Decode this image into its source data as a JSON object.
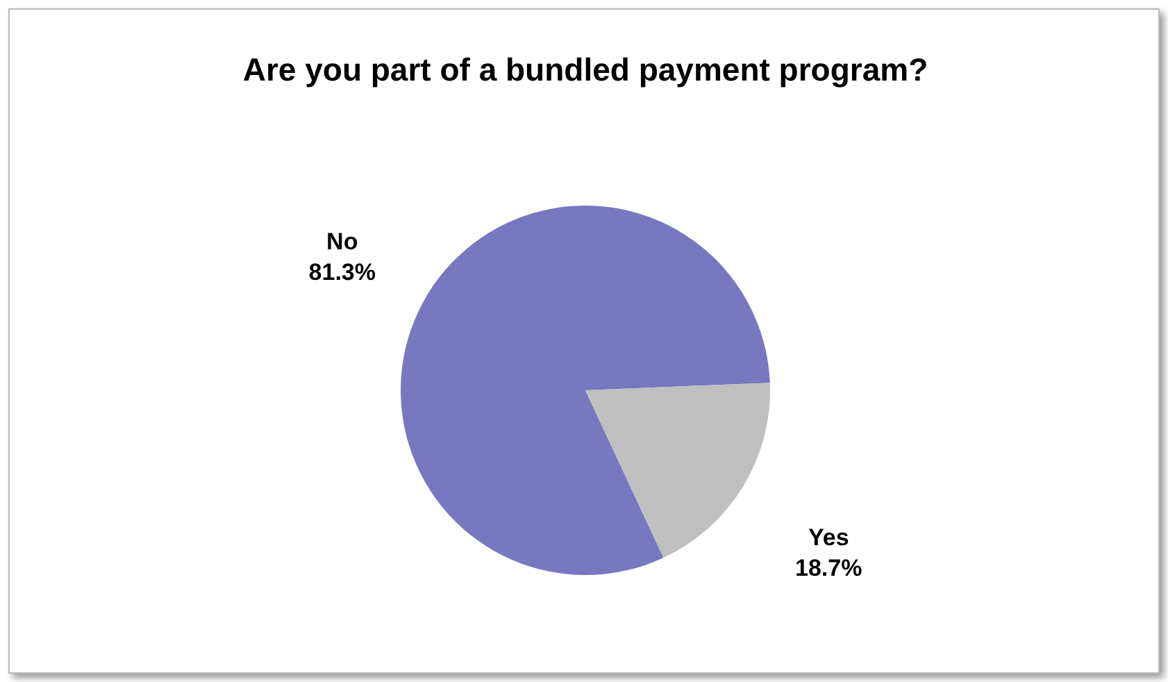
{
  "chart_data": {
    "type": "pie",
    "title": "Are you part of a bundled payment program?",
    "categories": [
      "No",
      "Yes"
    ],
    "values": [
      81.3,
      18.7
    ],
    "colors": [
      "#7878c0",
      "#bfbfbf"
    ],
    "value_labels": [
      "81.3%",
      "18.7%"
    ],
    "legend": false
  }
}
